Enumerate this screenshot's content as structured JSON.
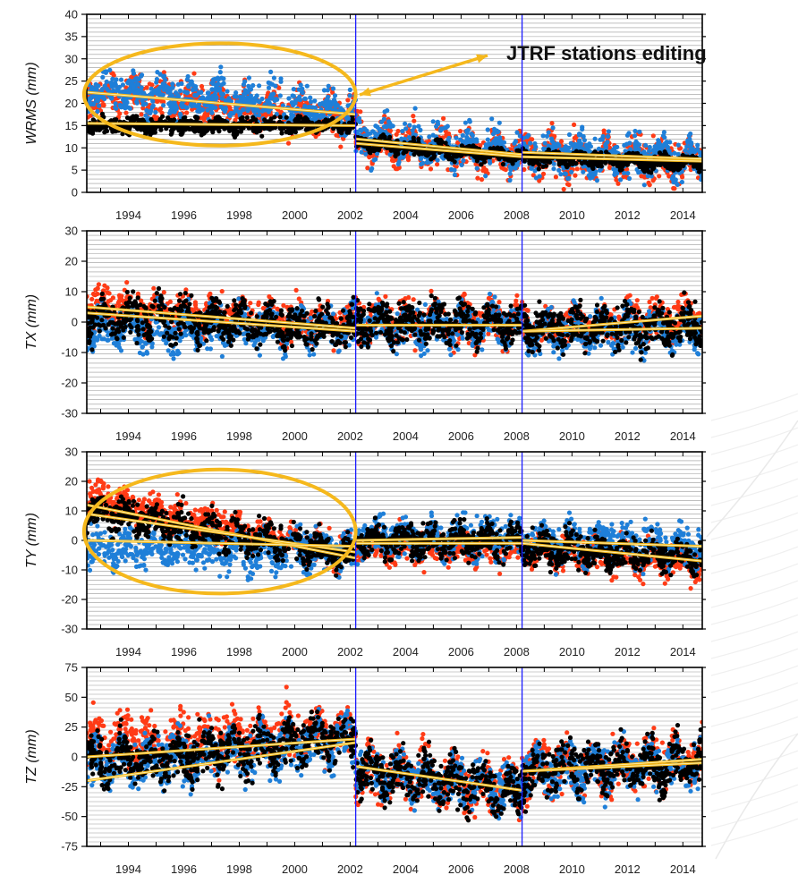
{
  "colors": {
    "red": "#ff3b16",
    "blue": "#1f7fd8",
    "black": "#000000",
    "trend": "#f5b81c",
    "epoch_line": "#1a1aff",
    "grid": "#999999"
  },
  "chart_data": [
    {
      "type": "scatter",
      "ylabel": "WRMS (mm)",
      "ylim": [
        0,
        40
      ],
      "yticks": [
        0,
        5,
        10,
        15,
        20,
        25,
        30,
        35,
        40
      ],
      "xlim": [
        1992.5,
        2014.7
      ],
      "xticks": [
        1994,
        1996,
        1998,
        2000,
        2002,
        2004,
        2006,
        2008,
        2010,
        2012,
        2014
      ],
      "vertical_lines": [
        2002.2,
        2008.2
      ],
      "grid": true,
      "series": [
        {
          "color": "red",
          "segments": [
            [
              1992.5,
              2002.2,
              22,
              17
            ],
            [
              2002.2,
              2008.2,
              11.5,
              8.5
            ],
            [
              2008.2,
              2014.7,
              8.5,
              7
            ]
          ],
          "spread": 4
        },
        {
          "color": "blue",
          "segments": [
            [
              1992.5,
              2002.2,
              23,
              18
            ],
            [
              2002.2,
              2008.2,
              12,
              9
            ],
            [
              2008.2,
              2014.7,
              9,
              7.5
            ]
          ],
          "spread": 4
        },
        {
          "color": "black",
          "segments": [
            [
              1992.5,
              2002.2,
              15,
              15
            ],
            [
              2002.2,
              2008.2,
              11,
              8
            ],
            [
              2008.2,
              2014.7,
              8,
              6.5
            ]
          ],
          "spread": 1.5
        }
      ],
      "trends": [
        [
          1992.5,
          2002.2,
          22.5,
          17.5
        ],
        [
          1992.5,
          2002.2,
          15.5,
          15
        ],
        [
          2002.2,
          2008.2,
          12,
          8.5
        ],
        [
          2002.2,
          2008.2,
          11,
          8
        ],
        [
          2008.2,
          2014.7,
          9,
          7.5
        ],
        [
          2008.2,
          2014.7,
          8,
          7
        ]
      ],
      "annotation": {
        "text": "JTRF stations editing"
      },
      "ellipse": {
        "cx": 1997.3,
        "cy": 22,
        "rx": 4.9,
        "ry": 11.5
      }
    },
    {
      "type": "scatter",
      "ylabel": "TX (mm)",
      "ylim": [
        -30,
        30
      ],
      "yticks": [
        -30,
        -20,
        -10,
        0,
        10,
        20,
        30
      ],
      "xlim": [
        1992.5,
        2014.7
      ],
      "xticks": [
        1994,
        1996,
        1998,
        2000,
        2002,
        2004,
        2006,
        2008,
        2010,
        2012,
        2014
      ],
      "vertical_lines": [
        2002.2,
        2008.2
      ],
      "grid": true,
      "series": [
        {
          "color": "red",
          "segments": [
            [
              1992.5,
              2002.2,
              5,
              -1
            ],
            [
              2002.2,
              2008.2,
              0,
              0
            ],
            [
              2008.2,
              2014.7,
              -2,
              2
            ]
          ],
          "spread": 6
        },
        {
          "color": "blue",
          "segments": [
            [
              1992.5,
              2002.2,
              -2,
              -2
            ],
            [
              2002.2,
              2008.2,
              -1,
              -1
            ],
            [
              2008.2,
              2014.7,
              -3,
              -2
            ]
          ],
          "spread": 6
        },
        {
          "color": "black",
          "segments": [
            [
              1992.5,
              2002.2,
              2,
              -2
            ],
            [
              2002.2,
              2008.2,
              0,
              -1
            ],
            [
              2008.2,
              2014.7,
              -2,
              -1
            ]
          ],
          "spread": 6
        }
      ],
      "trends": [
        [
          1992.5,
          2002.2,
          5,
          -2
        ],
        [
          1992.5,
          2002.2,
          3,
          -3
        ],
        [
          2002.2,
          2008.2,
          -1,
          -1
        ],
        [
          2008.2,
          2014.7,
          -3,
          2
        ],
        [
          2008.2,
          2014.7,
          -3,
          -2
        ]
      ]
    },
    {
      "type": "scatter",
      "ylabel": "TY (mm)",
      "ylim": [
        -30,
        30
      ],
      "yticks": [
        -30,
        -20,
        -10,
        0,
        10,
        20,
        30
      ],
      "xlim": [
        1992.5,
        2014.7
      ],
      "xticks": [
        1994,
        1996,
        1998,
        2000,
        2002,
        2004,
        2006,
        2008,
        2010,
        2012,
        2014
      ],
      "vertical_lines": [
        2002.2,
        2008.2
      ],
      "grid": true,
      "series": [
        {
          "color": "red",
          "segments": [
            [
              1992.5,
              2002.2,
              15,
              -5
            ],
            [
              2002.2,
              2008.2,
              -2,
              -2
            ],
            [
              2008.2,
              2014.7,
              -3,
              -7
            ]
          ],
          "spread": 5
        },
        {
          "color": "blue",
          "segments": [
            [
              1992.5,
              2002.2,
              -2,
              -4
            ],
            [
              2002.2,
              2008.2,
              1,
              1
            ],
            [
              2008.2,
              2014.7,
              0,
              -2
            ]
          ],
          "spread": 6
        },
        {
          "color": "black",
          "segments": [
            [
              1992.5,
              2002.2,
              10,
              -5
            ],
            [
              2002.2,
              2008.2,
              0,
              0
            ],
            [
              2008.2,
              2014.7,
              -2,
              -6
            ]
          ],
          "spread": 5
        }
      ],
      "trends": [
        [
          1992.5,
          2002.2,
          12,
          -6
        ],
        [
          1992.5,
          2002.2,
          9,
          -4
        ],
        [
          1992.5,
          2002.2,
          0,
          -2
        ],
        [
          2002.2,
          2008.2,
          0,
          1
        ],
        [
          2002.2,
          2008.2,
          -1,
          -1
        ],
        [
          2008.2,
          2014.7,
          -1,
          -7
        ],
        [
          2008.2,
          2014.7,
          0,
          -2
        ]
      ],
      "ellipse": {
        "cx": 1997.3,
        "cy": 3,
        "rx": 4.9,
        "ry": 21
      }
    },
    {
      "type": "scatter",
      "ylabel": "TZ (mm)",
      "ylim": [
        -75,
        75
      ],
      "yticks": [
        -75,
        -50,
        -25,
        0,
        25,
        50,
        75
      ],
      "xlim": [
        1992.5,
        2014.7
      ],
      "xticks": [
        1994,
        1996,
        1998,
        2000,
        2002,
        2004,
        2006,
        2008,
        2010,
        2012,
        2014
      ],
      "vertical_lines": [
        2002.2,
        2008.2
      ],
      "grid": true,
      "series": [
        {
          "color": "red",
          "segments": [
            [
              1992.5,
              2002.2,
              10,
              20
            ],
            [
              2002.2,
              2008.2,
              -10,
              -28
            ],
            [
              2008.2,
              2014.7,
              -12,
              -2
            ]
          ],
          "spread": 20
        },
        {
          "color": "blue",
          "segments": [
            [
              1992.5,
              2002.2,
              -8,
              15
            ],
            [
              2002.2,
              2008.2,
              -10,
              -27
            ],
            [
              2008.2,
              2014.7,
              -12,
              -5
            ]
          ],
          "spread": 18
        },
        {
          "color": "black",
          "segments": [
            [
              1992.5,
              2002.2,
              -5,
              15
            ],
            [
              2002.2,
              2008.2,
              -10,
              -28
            ],
            [
              2008.2,
              2014.7,
              -12,
              -5
            ]
          ],
          "spread": 18
        }
      ],
      "trends": [
        [
          1992.5,
          2002.2,
          0,
          15
        ],
        [
          1992.5,
          2002.2,
          -20,
          12
        ],
        [
          2002.2,
          2008.2,
          -8,
          -28
        ],
        [
          2008.2,
          2014.7,
          -12,
          -2
        ],
        [
          2008.2,
          2014.7,
          -12,
          -5
        ]
      ]
    }
  ]
}
